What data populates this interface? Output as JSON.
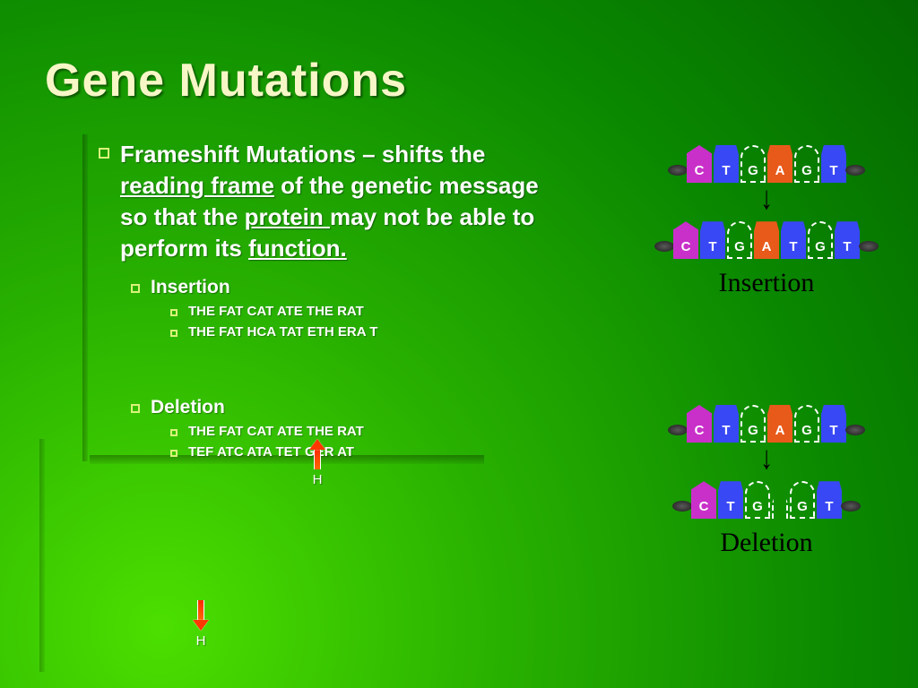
{
  "title": "Gene Mutations",
  "main": {
    "lead": "Frameshift Mutations – shifts the ",
    "u1": "reading frame",
    "mid1": " of the genetic message so that the ",
    "u2": "protein ",
    "mid2": "may not be able to perform its ",
    "u3": "function."
  },
  "sections": {
    "insertion": {
      "label": "Insertion",
      "ex1": "THE FAT CAT ATE THE RAT",
      "ex2": "THE FAT HCA TAT ETH ERA T",
      "annot": "H"
    },
    "deletion": {
      "label": "Deletion",
      "ex1": "THE FAT CAT ATE THE RAT",
      "ex2": "TEF ATC ATA TET GER AT",
      "annot": "H"
    }
  },
  "diagrams": {
    "insertion": {
      "top": [
        [
          "C",
          "mag",
          "pyr"
        ],
        [
          "T",
          "blue",
          "pur"
        ],
        [
          "G",
          "outline",
          "pyr"
        ],
        [
          "A",
          "orange",
          "pur"
        ],
        [
          "G",
          "outline",
          "pyr"
        ],
        [
          "T",
          "blue",
          "pur"
        ]
      ],
      "bottom": [
        [
          "C",
          "mag",
          "pyr"
        ],
        [
          "T",
          "blue",
          "pur"
        ],
        [
          "G",
          "outline",
          "pyr"
        ],
        [
          "A",
          "orange",
          "pur"
        ],
        [
          "T",
          "blue",
          "pur"
        ],
        [
          "G",
          "outline",
          "pyr"
        ],
        [
          "T",
          "blue",
          "pur"
        ]
      ],
      "label": "Insertion"
    },
    "deletion": {
      "top": [
        [
          "C",
          "mag",
          "pyr"
        ],
        [
          "T",
          "blue",
          "pur"
        ],
        [
          "G",
          "outline",
          "pyr"
        ],
        [
          "A",
          "orange",
          "pur"
        ],
        [
          "G",
          "outline",
          "pyr"
        ],
        [
          "T",
          "blue",
          "pur"
        ]
      ],
      "bottom": [
        [
          "C",
          "mag",
          "pyr"
        ],
        [
          "T",
          "blue",
          "pur"
        ],
        [
          "G",
          "outline",
          "pyr"
        ],
        [
          "gap",
          "",
          ""
        ],
        [
          "G",
          "outline",
          "pyr"
        ],
        [
          "T",
          "blue",
          "pur"
        ]
      ],
      "label": "Deletion"
    }
  },
  "colors": {
    "title": "#f7f6c7",
    "bullet": "#d9f27a",
    "mag": "#c930c9",
    "blue": "#3848f5",
    "orange": "#e85a1a",
    "arrow": "#ff3800"
  }
}
